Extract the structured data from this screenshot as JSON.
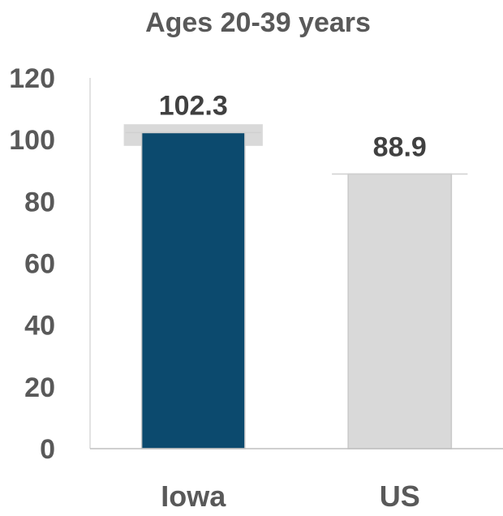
{
  "chart_data": {
    "type": "bar",
    "title": "Ages 20-39 years",
    "categories": [
      "Iowa",
      "US"
    ],
    "values": [
      102.3,
      88.9
    ],
    "data_labels": [
      "102.3",
      "88.9"
    ],
    "xlabel": "",
    "ylabel": "",
    "ylim": [
      0,
      120
    ],
    "yticks": [
      0,
      20,
      40,
      60,
      80,
      100,
      120
    ],
    "grid": false,
    "legend": "none",
    "colors": {
      "Iowa": "#0c4a6e",
      "US": "#d9d9d9",
      "range_band": "#d9d9d9"
    },
    "range_band": {
      "category": "Iowa",
      "low": 98,
      "high": 105
    }
  }
}
